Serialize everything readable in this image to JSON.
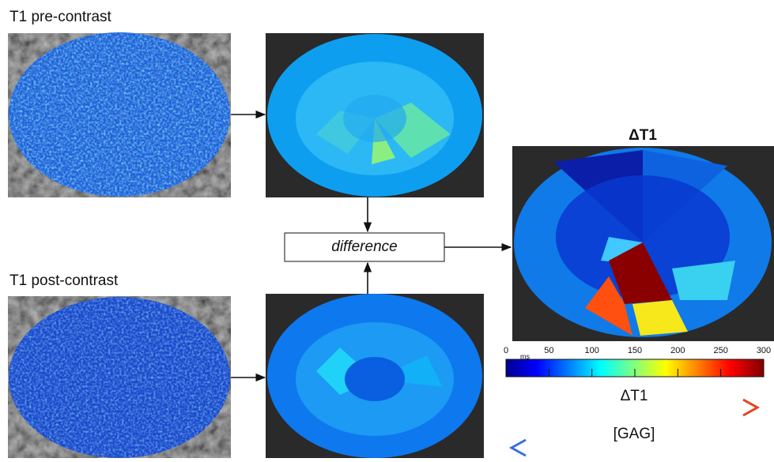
{
  "inputs": {
    "pre": {
      "label": "T1 pre-contrast"
    },
    "post": {
      "label": "T1 post-contrast"
    }
  },
  "operation": {
    "label": "difference"
  },
  "result": {
    "title": "ΔT1"
  },
  "colorbar": {
    "unit": "ms",
    "lim": [
      0,
      300
    ],
    "ticks": [
      0,
      50,
      100,
      150,
      200,
      250,
      300
    ]
  },
  "legend": {
    "increase": "ΔT1",
    "decrease": "[GAG]"
  }
}
